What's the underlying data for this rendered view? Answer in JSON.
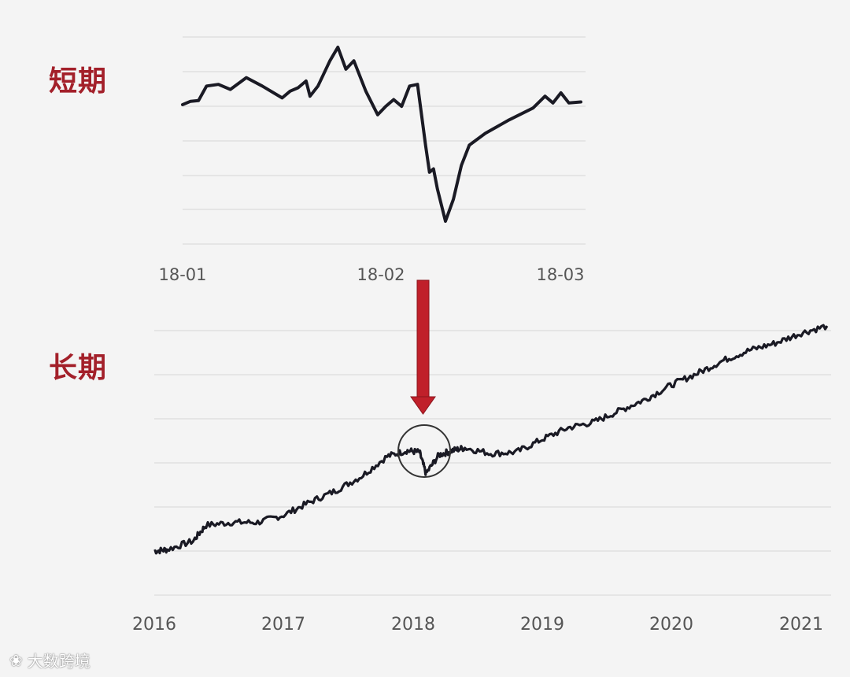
{
  "colors": {
    "line": "#1a1a24",
    "grid": "#dcdcdc",
    "accent": "#c0202a",
    "title": "#a3202a",
    "tick_text": "#555555"
  },
  "titles": {
    "short": "短期",
    "long": "长期"
  },
  "watermark": {
    "text": "大数跨境"
  },
  "chart_data": [
    {
      "type": "line",
      "name": "short-term",
      "x_ticks": [
        "18-01",
        "18-02",
        "18-03"
      ],
      "grid": true,
      "series": [
        {
          "values": [
            [
              0.0,
              0.0
            ],
            [
              0.02,
              0.1
            ],
            [
              0.04,
              0.12
            ],
            [
              0.06,
              0.55
            ],
            [
              0.09,
              0.6
            ],
            [
              0.12,
              0.45
            ],
            [
              0.16,
              0.8
            ],
            [
              0.2,
              0.55
            ],
            [
              0.25,
              0.2
            ],
            [
              0.27,
              0.4
            ],
            [
              0.29,
              0.5
            ],
            [
              0.31,
              0.7
            ],
            [
              0.32,
              0.25
            ],
            [
              0.34,
              0.55
            ],
            [
              0.37,
              1.3
            ],
            [
              0.39,
              1.7
            ],
            [
              0.41,
              1.05
            ],
            [
              0.43,
              1.3
            ],
            [
              0.46,
              0.4
            ],
            [
              0.49,
              -0.3
            ],
            [
              0.51,
              -0.05
            ],
            [
              0.53,
              0.15
            ],
            [
              0.55,
              -0.05
            ],
            [
              0.57,
              0.55
            ],
            [
              0.59,
              0.6
            ],
            [
              0.61,
              -1.2
            ],
            [
              0.62,
              -2.0
            ],
            [
              0.63,
              -1.9
            ],
            [
              0.64,
              -2.5
            ],
            [
              0.66,
              -3.45
            ],
            [
              0.68,
              -2.8
            ],
            [
              0.7,
              -1.8
            ],
            [
              0.72,
              -1.2
            ],
            [
              0.76,
              -0.85
            ],
            [
              0.82,
              -0.45
            ],
            [
              0.88,
              -0.1
            ],
            [
              0.91,
              0.25
            ],
            [
              0.93,
              0.05
            ],
            [
              0.95,
              0.35
            ],
            [
              0.97,
              0.05
            ],
            [
              1.0,
              0.08
            ]
          ]
        }
      ]
    },
    {
      "type": "line",
      "name": "long-term",
      "x_ticks": [
        "2016",
        "2017",
        "2018",
        "2019",
        "2020",
        "2021"
      ],
      "grid": true,
      "annotations": [
        {
          "type": "circle",
          "x": 2018.1
        },
        {
          "type": "arrow",
          "label": ""
        }
      ],
      "series": [
        {
          "values": [
            [
              2016.0,
              0.0
            ],
            [
              2016.1,
              0.05
            ],
            [
              2016.3,
              0.35
            ],
            [
              2016.4,
              0.9
            ],
            [
              2016.6,
              1.0
            ],
            [
              2016.8,
              1.0
            ],
            [
              2017.0,
              1.25
            ],
            [
              2017.2,
              1.7
            ],
            [
              2017.4,
              2.1
            ],
            [
              2017.6,
              2.6
            ],
            [
              2017.8,
              3.3
            ],
            [
              2017.95,
              3.5
            ],
            [
              2018.05,
              3.45
            ],
            [
              2018.1,
              2.7
            ],
            [
              2018.2,
              3.35
            ],
            [
              2018.3,
              3.5
            ],
            [
              2018.4,
              3.6
            ],
            [
              2018.6,
              3.4
            ],
            [
              2018.8,
              3.45
            ],
            [
              2019.0,
              3.9
            ],
            [
              2019.2,
              4.3
            ],
            [
              2019.4,
              4.5
            ],
            [
              2019.6,
              4.9
            ],
            [
              2019.8,
              5.3
            ],
            [
              2020.0,
              5.8
            ],
            [
              2020.2,
              6.2
            ],
            [
              2020.4,
              6.65
            ],
            [
              2020.6,
              7.0
            ],
            [
              2020.8,
              7.25
            ],
            [
              2021.0,
              7.6
            ],
            [
              2021.2,
              7.85
            ]
          ]
        }
      ]
    }
  ]
}
